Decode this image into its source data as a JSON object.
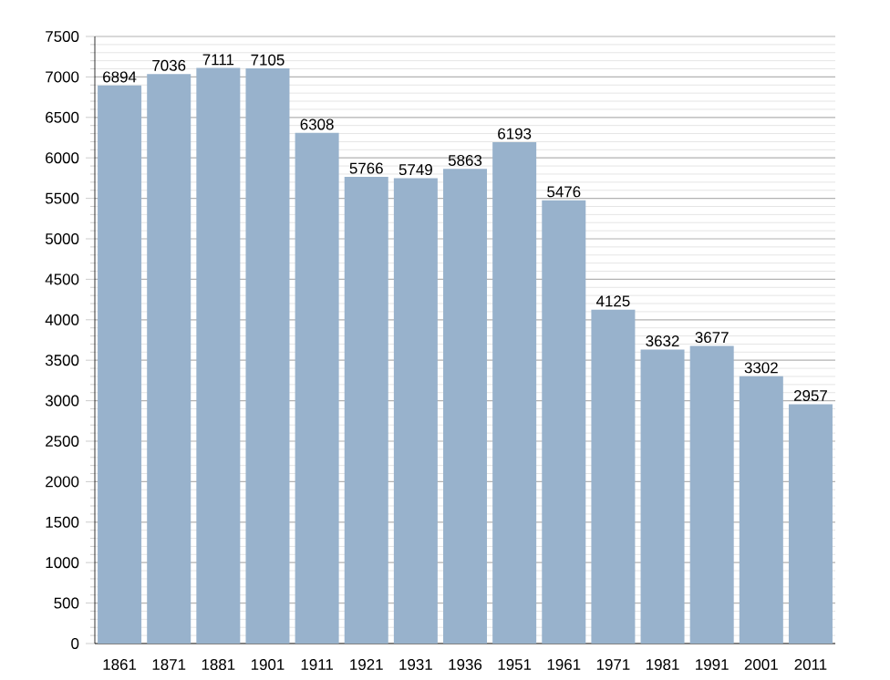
{
  "chart_data": {
    "type": "bar",
    "categories": [
      "1861",
      "1871",
      "1881",
      "1901",
      "1911",
      "1921",
      "1931",
      "1936",
      "1951",
      "1961",
      "1971",
      "1981",
      "1991",
      "2001",
      "2011"
    ],
    "values": [
      6894,
      7036,
      7111,
      7105,
      6308,
      5766,
      5749,
      5863,
      6193,
      5476,
      4125,
      3632,
      3677,
      3302,
      2957
    ],
    "color": "#98b2cc",
    "ylim": [
      0,
      7500
    ],
    "yticks": [
      0,
      500,
      1000,
      1500,
      2000,
      2500,
      3000,
      3500,
      4000,
      4500,
      5000,
      5500,
      6000,
      6500,
      7000,
      7500
    ],
    "grid": "y",
    "data_labels": true
  }
}
